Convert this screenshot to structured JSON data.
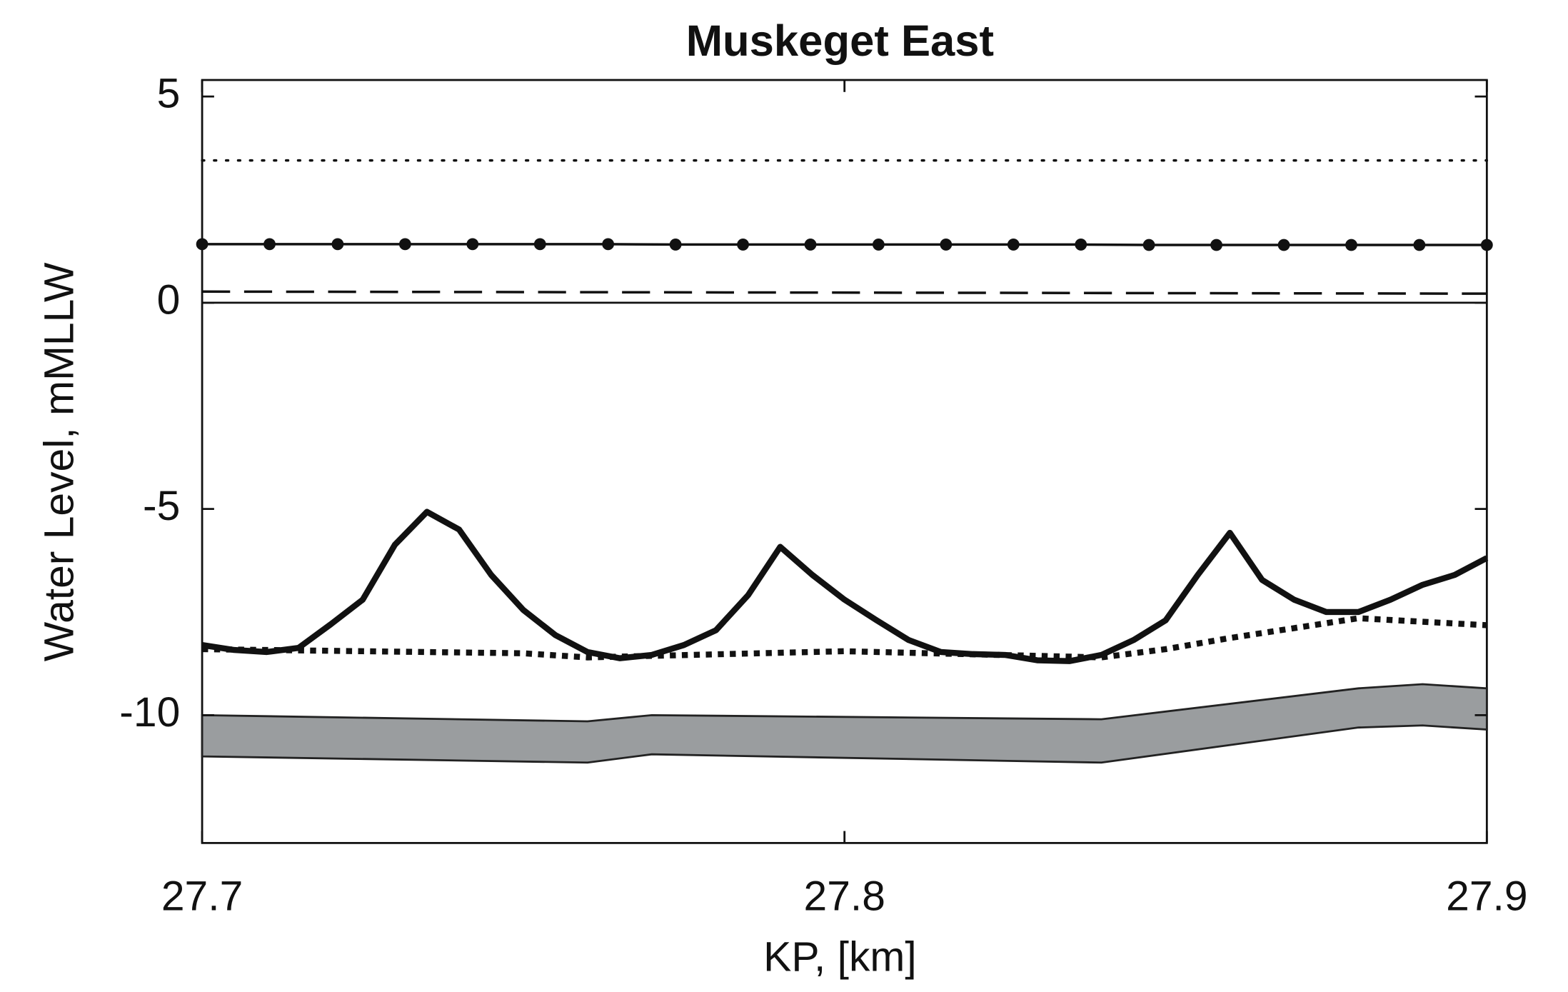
{
  "chart_data": {
    "type": "line",
    "title": "Muskeget East",
    "x_label": "KP, [km]",
    "y_label": "Water Level, mMLLW",
    "xlim": [
      27.7,
      27.9
    ],
    "ylim": [
      -13.1,
      5.4
    ],
    "xticks": [
      27.7,
      27.8,
      27.9
    ],
    "yticks": [
      -10,
      -5,
      0,
      5
    ],
    "grid": false,
    "x": [
      27.7,
      27.705,
      27.71,
      27.715,
      27.72,
      27.725,
      27.73,
      27.735,
      27.74,
      27.745,
      27.75,
      27.755,
      27.76,
      27.765,
      27.77,
      27.775,
      27.78,
      27.785,
      27.79,
      27.795,
      27.8,
      27.805,
      27.81,
      27.815,
      27.82,
      27.825,
      27.83,
      27.835,
      27.84,
      27.845,
      27.85,
      27.855,
      27.86,
      27.865,
      27.87,
      27.875,
      27.88,
      27.885,
      27.89,
      27.895,
      27.9
    ],
    "series": [
      {
        "style": "band",
        "color": "#9a9d9f",
        "edge_color": "#222",
        "x": [
          27.7,
          27.76,
          27.77,
          27.84,
          27.88,
          27.89,
          27.9
        ],
        "values": [
          -10.0,
          -10.15,
          -10.0,
          -10.1,
          -9.35,
          -9.25,
          -9.35
        ],
        "values_low": [
          -11.0,
          -11.15,
          -10.95,
          -11.15,
          -10.3,
          -10.25,
          -10.35
        ]
      },
      {
        "style": "dotted",
        "color": "#111",
        "width": 2.5,
        "x": [
          27.7,
          27.9
        ],
        "values": [
          3.45,
          3.45
        ]
      },
      {
        "style": "dot-markers",
        "color": "#111",
        "width": 2.5,
        "x": [
          27.7,
          27.7105,
          27.7211,
          27.7316,
          27.7421,
          27.7526,
          27.7632,
          27.7737,
          27.7842,
          27.7947,
          27.8053,
          27.8158,
          27.8263,
          27.8368,
          27.8474,
          27.8579,
          27.8684,
          27.8789,
          27.8895,
          27.9
        ],
        "values": [
          1.42,
          1.42,
          1.42,
          1.42,
          1.42,
          1.42,
          1.42,
          1.41,
          1.41,
          1.41,
          1.41,
          1.41,
          1.41,
          1.41,
          1.4,
          1.4,
          1.4,
          1.4,
          1.4,
          1.4
        ]
      },
      {
        "style": "dashed",
        "color": "#111",
        "width": 2.5,
        "x": [
          27.7,
          27.9
        ],
        "values": [
          0.27,
          0.22
        ]
      },
      {
        "style": "solid",
        "color": "#111",
        "width": 2,
        "x": [
          27.7,
          27.9
        ],
        "values": [
          0,
          0
        ]
      },
      {
        "style": "dotted-thick",
        "color": "#111",
        "width": 6,
        "x": [
          27.7,
          27.75,
          27.76,
          27.8,
          27.84,
          27.85,
          27.86,
          27.88,
          27.9
        ],
        "values": [
          -8.4,
          -8.5,
          -8.6,
          -8.45,
          -8.6,
          -8.4,
          -8.13,
          -7.65,
          -7.82
        ]
      },
      {
        "style": "solid",
        "color": "#111",
        "width": 6,
        "values": [
          -8.3,
          -8.42,
          -8.47,
          -8.37,
          -7.8,
          -7.2,
          -5.87,
          -5.07,
          -5.5,
          -6.6,
          -7.45,
          -8.06,
          -8.47,
          -8.62,
          -8.54,
          -8.3,
          -7.94,
          -7.09,
          -5.92,
          -6.6,
          -7.2,
          -7.7,
          -8.18,
          -8.47,
          -8.52,
          -8.54,
          -8.67,
          -8.69,
          -8.54,
          -8.18,
          -7.7,
          -6.6,
          -5.58,
          -6.72,
          -7.2,
          -7.5,
          -7.5,
          -7.2,
          -6.84,
          -6.6,
          -6.19
        ]
      }
    ]
  }
}
